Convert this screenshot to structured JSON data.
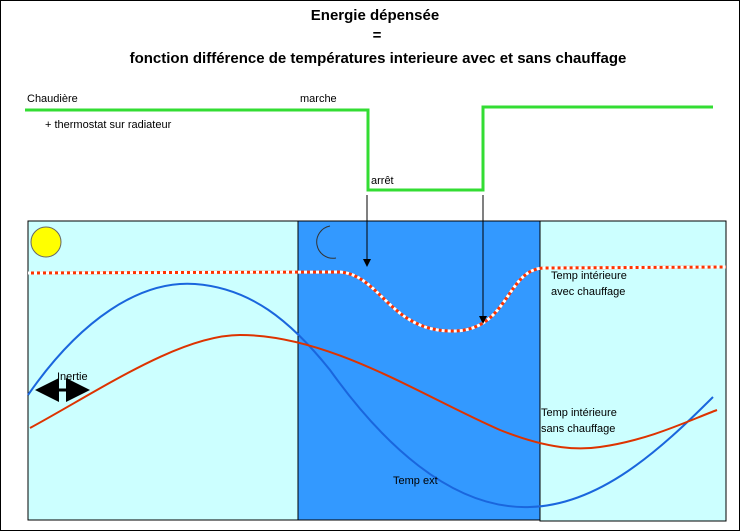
{
  "title": {
    "line1": "Energie dépensée",
    "line2": "=",
    "line3": "fonction différence de températures interieure  avec et sans chauffage"
  },
  "labels": {
    "boiler": "Chaudière",
    "thermostat": "+ thermostat  sur radiateur",
    "on": "marche",
    "off": "arrêt",
    "heated_1": "Temp  intérieure",
    "heated_2": "avec chauffage",
    "unheated_1": "Temp  intérieure",
    "unheated_2": "sans chauffage",
    "inertia": "Inertie",
    "outside": "Temp ext"
  }
}
